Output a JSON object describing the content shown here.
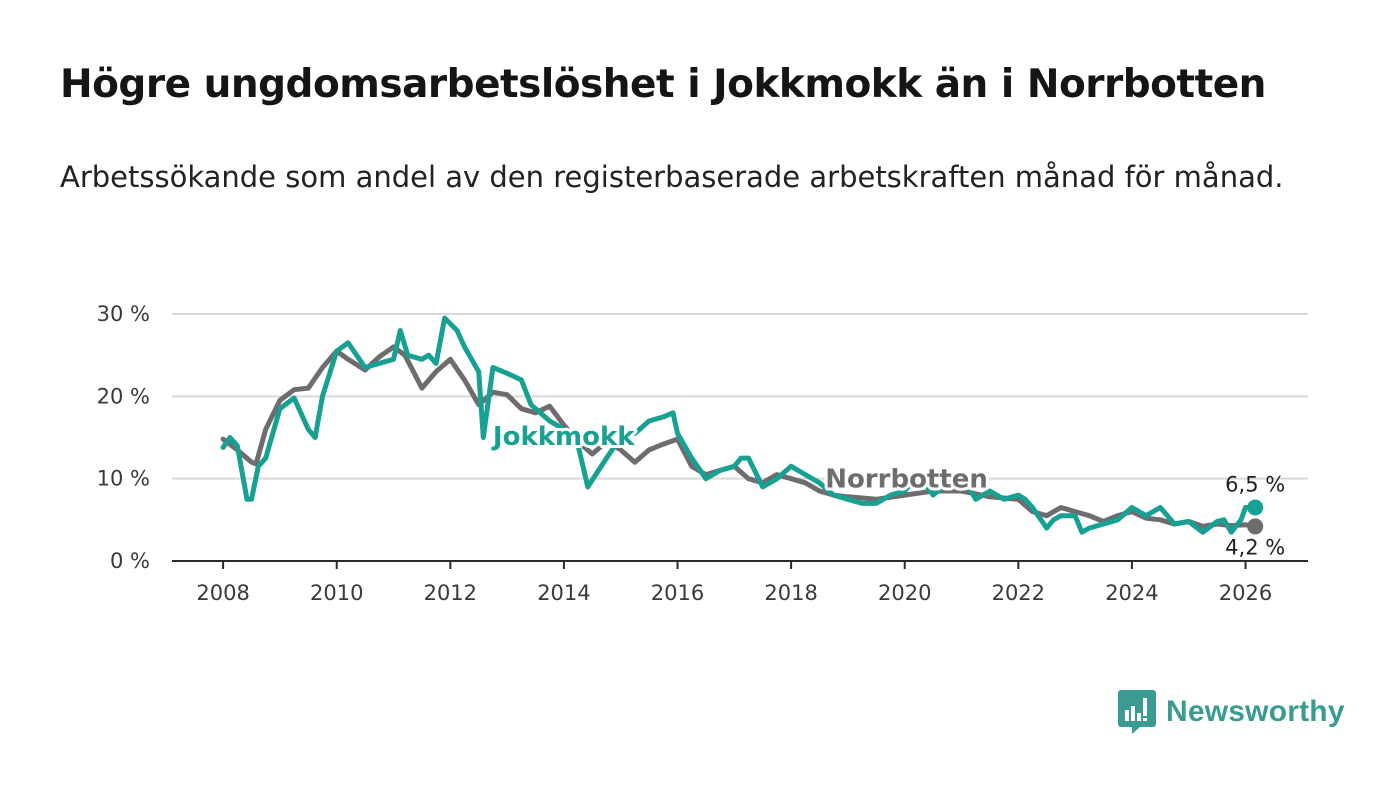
{
  "title": "Högre ungdomsarbetslöshet i Jokkmokk än i Norrbotten",
  "subtitle": "Arbetssökande som andel av den registerbaserade arbetskraften månad för månad.",
  "brand": {
    "name": "Newsworthy",
    "color": "#3a9b93",
    "icon": "newsworthy-logo-icon"
  },
  "chart_data": {
    "type": "line",
    "title": "",
    "xlabel": "",
    "ylabel": "",
    "ylim": [
      0,
      30
    ],
    "xlim": [
      2007.1,
      2027.1
    ],
    "x_ticks": [
      2008,
      2010,
      2012,
      2014,
      2016,
      2018,
      2020,
      2022,
      2024,
      2026
    ],
    "x_tick_labels": [
      "2008",
      "2010",
      "2012",
      "2014",
      "2016",
      "2018",
      "2020",
      "2022",
      "2024",
      "2026"
    ],
    "y_ticks": [
      0,
      10,
      20,
      30
    ],
    "y_tick_labels": [
      "0 %",
      "10 %",
      "20 %",
      "30 %"
    ],
    "grid": true,
    "series": [
      {
        "name": "Norrbotten",
        "label": "Norrbotten",
        "color": "#6e6c6f",
        "x": [
          2008.0,
          2008.25,
          2008.5,
          2008.58,
          2008.75,
          2009.0,
          2009.25,
          2009.5,
          2009.75,
          2010.0,
          2010.2,
          2010.5,
          2010.75,
          2011.0,
          2011.2,
          2011.5,
          2011.75,
          2012.0,
          2012.25,
          2012.5,
          2012.75,
          2013.0,
          2013.25,
          2013.5,
          2013.75,
          2014.0,
          2014.25,
          2014.5,
          2014.75,
          2015.0,
          2015.25,
          2015.5,
          2015.75,
          2016.0,
          2016.25,
          2016.5,
          2016.75,
          2017.0,
          2017.25,
          2017.5,
          2017.75,
          2018.0,
          2018.25,
          2018.5,
          2018.75,
          2019.0,
          2019.5,
          2020.0,
          2020.5,
          2021.0,
          2021.5,
          2022.0,
          2022.25,
          2022.5,
          2022.75,
          2023.0,
          2023.25,
          2023.5,
          2023.75,
          2024.0,
          2024.25,
          2024.5,
          2024.75,
          2025.0,
          2025.25,
          2025.5,
          2025.75,
          2026.0,
          2026.17
        ],
        "values": [
          14.8,
          13.5,
          12.0,
          11.8,
          16.0,
          19.5,
          20.8,
          21.0,
          23.5,
          25.5,
          24.5,
          23.2,
          24.8,
          26.0,
          25.0,
          21.0,
          23.0,
          24.5,
          22.0,
          19.0,
          20.5,
          20.2,
          18.5,
          18.0,
          18.8,
          16.5,
          14.5,
          13.0,
          14.5,
          13.5,
          12.0,
          13.5,
          14.2,
          14.8,
          11.5,
          10.5,
          11.0,
          11.5,
          10.0,
          9.5,
          10.5,
          10.0,
          9.5,
          8.5,
          8.0,
          7.8,
          7.5,
          8.0,
          8.5,
          8.5,
          7.8,
          7.5,
          6.0,
          5.5,
          6.5,
          6.0,
          5.5,
          4.8,
          5.5,
          6.0,
          5.2,
          5.0,
          4.5,
          4.8,
          4.2,
          4.5,
          4.3,
          4.4,
          4.2
        ],
        "end_label": "4,2 %"
      },
      {
        "name": "Jokkmokk",
        "label": "Jokkmokk",
        "color": "#17a192",
        "x": [
          2008.0,
          2008.12,
          2008.25,
          2008.42,
          2008.5,
          2008.62,
          2008.75,
          2009.0,
          2009.25,
          2009.5,
          2009.62,
          2009.75,
          2010.0,
          2010.2,
          2010.5,
          2010.75,
          2011.0,
          2011.12,
          2011.25,
          2011.5,
          2011.62,
          2011.75,
          2011.9,
          2012.12,
          2012.25,
          2012.5,
          2012.58,
          2012.75,
          2013.0,
          2013.25,
          2013.42,
          2013.75,
          2014.0,
          2014.25,
          2014.42,
          2014.75,
          2015.0,
          2015.25,
          2015.5,
          2015.75,
          2015.92,
          2016.0,
          2016.25,
          2016.5,
          2016.75,
          2017.0,
          2017.12,
          2017.25,
          2017.5,
          2017.75,
          2018.0,
          2018.25,
          2018.5,
          2018.75,
          2019.0,
          2019.25,
          2019.5,
          2019.75,
          2020.0,
          2020.25,
          2020.5,
          2020.75,
          2021.0,
          2021.25,
          2021.5,
          2021.75,
          2022.0,
          2022.12,
          2022.25,
          2022.5,
          2022.62,
          2022.75,
          2023.0,
          2023.12,
          2023.25,
          2023.5,
          2023.75,
          2024.0,
          2024.25,
          2024.5,
          2024.75,
          2025.0,
          2025.25,
          2025.5,
          2025.62,
          2025.75,
          2025.92,
          2026.0,
          2026.17
        ],
        "values": [
          13.8,
          15.0,
          14.0,
          7.5,
          7.5,
          11.5,
          12.5,
          18.5,
          19.8,
          16.0,
          15.0,
          20.0,
          25.5,
          26.5,
          23.5,
          24.0,
          24.5,
          28.0,
          25.0,
          24.5,
          25.0,
          24.0,
          29.5,
          28.0,
          26.0,
          23.0,
          15.0,
          23.5,
          22.8,
          22.0,
          19.0,
          17.0,
          16.0,
          14.0,
          9.0,
          12.5,
          15.0,
          15.5,
          17.0,
          17.5,
          18.0,
          15.5,
          12.5,
          10.0,
          11.0,
          11.5,
          12.5,
          12.5,
          9.0,
          10.0,
          11.5,
          10.5,
          9.5,
          8.0,
          7.5,
          7.0,
          7.0,
          8.0,
          8.5,
          10.5,
          8.0,
          9.5,
          10.5,
          7.5,
          8.5,
          7.5,
          8.0,
          7.5,
          6.5,
          4.0,
          5.0,
          5.5,
          5.5,
          3.5,
          4.0,
          4.5,
          5.0,
          6.5,
          5.5,
          6.5,
          4.5,
          4.8,
          3.5,
          4.8,
          5.0,
          3.5,
          5.0,
          6.5,
          6.5
        ],
        "end_label": "6,5 %"
      }
    ]
  }
}
